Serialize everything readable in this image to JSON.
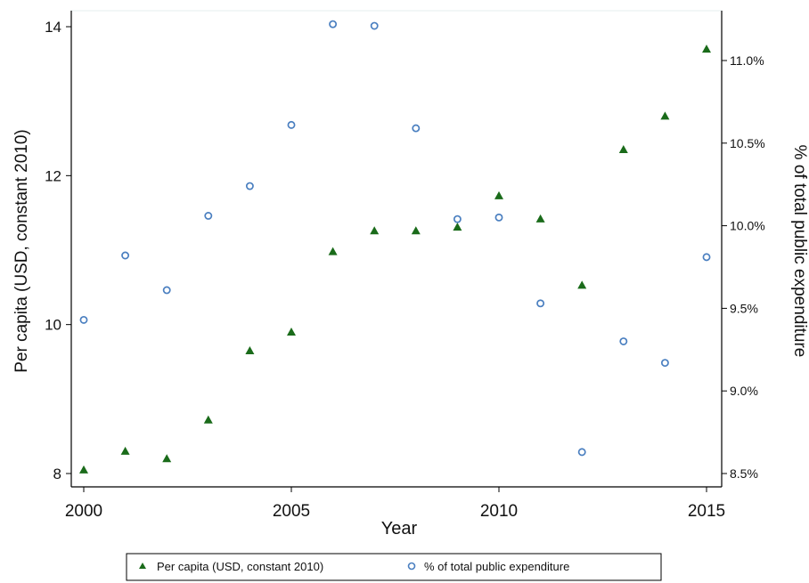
{
  "chart_data": {
    "type": "scatter",
    "xlabel": "Year",
    "ylabel_left": "Per capita (USD, constant 2010)",
    "ylabel_right": "% of total public expenditure",
    "x": [
      2000,
      2001,
      2002,
      2003,
      2004,
      2005,
      2006,
      2007,
      2008,
      2009,
      2010,
      2011,
      2012,
      2013,
      2014,
      2015
    ],
    "xlim": [
      2000,
      2015
    ],
    "ylim_left": [
      8,
      14
    ],
    "ylim_right": [
      8.5,
      11.2
    ],
    "x_ticks": [
      2000,
      2005,
      2010,
      2015
    ],
    "y_ticks_left": [
      8,
      10,
      12,
      14
    ],
    "y_ticks_right": [
      {
        "value": 8.5,
        "label": "8.5%"
      },
      {
        "value": 9.0,
        "label": "9.0%"
      },
      {
        "value": 9.5,
        "label": "9.5%"
      },
      {
        "value": 10.0,
        "label": "10.0%"
      },
      {
        "value": 10.5,
        "label": "10.5%"
      },
      {
        "value": 11.0,
        "label": "11.0%"
      }
    ],
    "series": [
      {
        "name": "Per capita (USD, constant 2010)",
        "axis": "left",
        "marker": "triangle",
        "color": "#1a6b1a",
        "values": [
          8.05,
          8.3,
          8.2,
          8.72,
          9.65,
          9.9,
          10.98,
          11.26,
          11.26,
          11.31,
          11.73,
          11.42,
          10.53,
          12.35,
          12.8,
          13.7
        ]
      },
      {
        "name": "% of total public expenditure",
        "axis": "right",
        "marker": "circle",
        "color": "#4a7fc0",
        "values": [
          9.43,
          9.82,
          9.61,
          10.06,
          10.24,
          10.61,
          11.22,
          11.21,
          10.59,
          10.04,
          10.05,
          9.53,
          8.63,
          9.3,
          9.17,
          9.81
        ]
      }
    ],
    "legend_position": "bottom",
    "grid": false
  }
}
